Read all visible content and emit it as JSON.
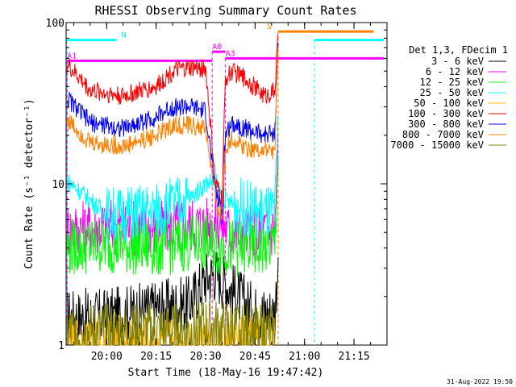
{
  "chart_data": {
    "type": "line",
    "title": "RHESSI Observing Summary Count Rates",
    "xlabel": "Start Time (18-May-16 19:47:42)",
    "ylabel": "Count Rate (s⁻¹ detector⁻¹)",
    "yscale": "log",
    "ylim": [
      1,
      100
    ],
    "xlim": [
      "19:47:42",
      "21:25:00"
    ],
    "x_ticks": [
      "20:00",
      "20:15",
      "20:30",
      "20:45",
      "21:00",
      "21:15"
    ],
    "y_ticks": [
      "1",
      "10",
      "100"
    ],
    "legend_title": "Det 1,3, FDecim 1",
    "legend_placement": "right",
    "footer": "31-Aug-2022 19:50",
    "series": [
      {
        "name": "3 - 6 keV",
        "color": "#000000",
        "x": [
          "19:48",
          "20:00",
          "20:15",
          "20:25",
          "20:30",
          "20:33",
          "20:38",
          "20:45",
          "20:51",
          "20:52"
        ],
        "y": [
          1.5,
          1.5,
          1.7,
          1.8,
          2.6,
          2.8,
          2.2,
          1.6,
          1.6,
          3.5
        ]
      },
      {
        "name": "6 - 12 keV",
        "color": "#ff00ff",
        "x": [
          "19:48",
          "20:00",
          "20:15",
          "20:25",
          "20:30",
          "20:34",
          "20:38",
          "20:45",
          "20:51",
          "20:52"
        ],
        "y": [
          5.2,
          5.5,
          5.3,
          5.6,
          5.6,
          5.8,
          5.0,
          5.0,
          5.2,
          20
        ]
      },
      {
        "name": "12 - 25 keV",
        "color": "#00ff00",
        "x": [
          "19:48",
          "20:00",
          "20:15",
          "20:25",
          "20:30",
          "20:34",
          "20:38",
          "20:45",
          "20:51",
          "20:52"
        ],
        "y": [
          4.0,
          4.2,
          4.0,
          4.3,
          4.3,
          4.0,
          4.0,
          3.9,
          4.2,
          15
        ]
      },
      {
        "name": "25 - 50 keV",
        "color": "#00ffff",
        "x": [
          "19:48",
          "20:00",
          "20:05",
          "20:15",
          "20:25",
          "20:30",
          "20:33",
          "20:35",
          "20:38",
          "20:45",
          "20:51",
          "20:52"
        ],
        "y": [
          10.5,
          6.5,
          6.5,
          6.8,
          8.0,
          10.0,
          10.5,
          8.2,
          7.5,
          6.8,
          6.5,
          25
        ]
      },
      {
        "name": "50 - 100 keV",
        "color": "#ffb400",
        "x": [
          "19:48",
          "20:00",
          "20:15",
          "20:25",
          "20:30",
          "20:51"
        ],
        "y": [
          1,
          1,
          1,
          1,
          1,
          1
        ]
      },
      {
        "name": "100 - 300 keV",
        "color": "#ff0000",
        "x": [
          "19:48",
          "19:55",
          "20:05",
          "20:15",
          "20:20",
          "20:25",
          "20:30",
          "20:33",
          "20:35",
          "20:36",
          "20:38",
          "20:42",
          "20:48",
          "20:51",
          "20:52"
        ],
        "y": [
          55,
          38,
          35,
          40,
          50,
          52,
          52,
          10,
          8,
          45,
          50,
          45,
          35,
          38,
          85
        ]
      },
      {
        "name": "300 - 800 keV",
        "color": "#0000ff",
        "x": [
          "19:48",
          "19:55",
          "20:05",
          "20:15",
          "20:20",
          "20:25",
          "20:30",
          "20:33",
          "20:35",
          "20:36",
          "20:38",
          "20:42",
          "20:48",
          "20:51",
          "20:52"
        ],
        "y": [
          34,
          24,
          22,
          26,
          30,
          30,
          28,
          9,
          6.5,
          20,
          24,
          22,
          20,
          21,
          75
        ]
      },
      {
        "name": "800 - 7000 keV",
        "color": "#ff8000",
        "x": [
          "19:48",
          "19:55",
          "20:05",
          "20:15",
          "20:20",
          "20:25",
          "20:30",
          "20:33",
          "20:35",
          "20:36",
          "20:38",
          "20:42",
          "20:48",
          "20:51",
          "20:52"
        ],
        "y": [
          25,
          18,
          17,
          20,
          23,
          23,
          22,
          8,
          6,
          17,
          19,
          17,
          16,
          16,
          70
        ]
      },
      {
        "name": "7000 - 15000 keV",
        "color": "#808000",
        "x": [
          "19:48",
          "20:00",
          "20:15",
          "20:25",
          "20:30",
          "20:45",
          "20:51"
        ],
        "y": [
          1.2,
          1.2,
          1.2,
          1.2,
          1.3,
          1.2,
          1.2
        ]
      }
    ],
    "flag_bars": [
      {
        "label": "N",
        "color": "#00ffff",
        "y": 78,
        "segments": [
          [
            "19:48",
            "20:03"
          ],
          [
            "21:03",
            "21:24"
          ]
        ]
      },
      {
        "label": "A1",
        "color": "#ff00ff",
        "y": 58,
        "segments": [
          [
            "19:48",
            "20:32"
          ]
        ]
      },
      {
        "label": "A0",
        "color": "#ff00ff",
        "y": 66,
        "segments": [
          [
            "20:32",
            "20:36"
          ]
        ]
      },
      {
        "label": "A3",
        "color": "#ff00ff",
        "y": 60,
        "segments": [
          [
            "20:36",
            "21:24"
          ]
        ]
      },
      {
        "label": "S",
        "color": "#ff8000",
        "y": 88,
        "segments": [
          [
            "20:52",
            "21:21"
          ]
        ]
      }
    ]
  }
}
